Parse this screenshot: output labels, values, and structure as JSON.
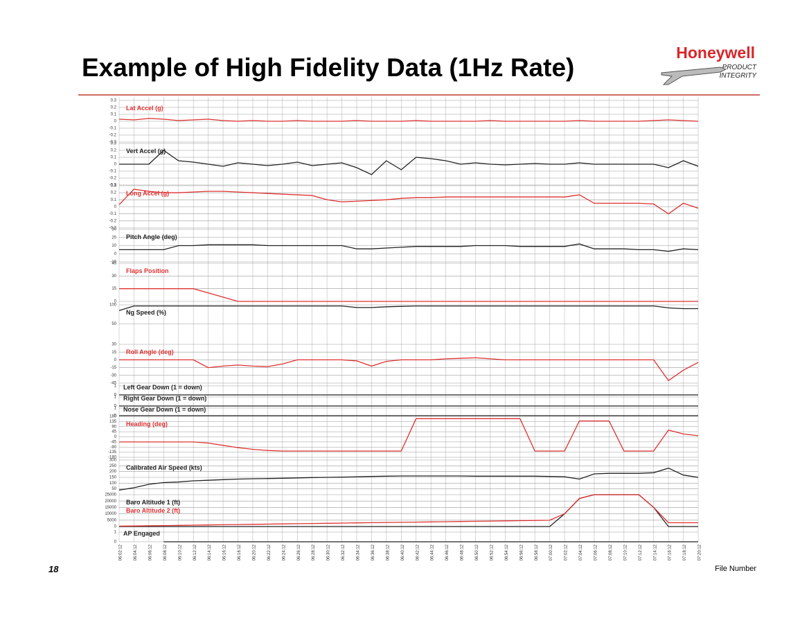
{
  "header": {
    "title": "Example of High Fidelity Data (1Hz Rate)",
    "logo": "Honeywell",
    "logo_line1": "PRODUCT",
    "logo_line2": "INTEGRITY"
  },
  "footer": {
    "page": "18",
    "file": "File Number"
  },
  "chart_data": {
    "type": "line",
    "grid": true,
    "categories": [
      "06:02:12",
      "06:04:12",
      "06:06:12",
      "06:08:12",
      "06:10:12",
      "06:12:12",
      "06:14:12",
      "06:16:12",
      "06:18:12",
      "06:20:12",
      "06:22:12",
      "06:24:12",
      "06:26:12",
      "06:28:12",
      "06:30:12",
      "06:32:12",
      "06:34:12",
      "06:36:12",
      "06:38:12",
      "06:40:12",
      "06:42:12",
      "06:44:12",
      "06:46:12",
      "06:48:12",
      "06:50:12",
      "06:52:12",
      "06:54:12",
      "06:56:12",
      "06:58:12",
      "07:00:12",
      "07:02:12",
      "07:04:12",
      "07:06:12",
      "07:08:12",
      "07:10:12",
      "07:12:12",
      "07:14:12",
      "07:16:12",
      "07:18:12",
      "07:20:12"
    ],
    "panels": [
      {
        "ylim": [
          -0.3,
          0.3
        ],
        "yticks": [
          0.3,
          0.2,
          0.1,
          0,
          -0.1,
          -0.2,
          -0.3
        ],
        "series": [
          {
            "name": "Lat Accel (g)",
            "color": "#e03030",
            "values": [
              0.03,
              0.02,
              0.04,
              0.03,
              0.01,
              0.02,
              0.03,
              0.01,
              0,
              0.01,
              0,
              0,
              0.01,
              0,
              0,
              0,
              0.01,
              0,
              0,
              0,
              0.01,
              0,
              0,
              0,
              0,
              0.01,
              0,
              0,
              0,
              0,
              0,
              0.01,
              0,
              0,
              0,
              0,
              0.01,
              0.02,
              0.01,
              0
            ]
          }
        ]
      },
      {
        "ylim": [
          -0.3,
          0.3
        ],
        "yticks": [
          0.3,
          0.2,
          0.1,
          0,
          -0.1,
          -0.2,
          -0.3
        ],
        "series": [
          {
            "name": "Vert Accel (g)",
            "color": "#222222",
            "values": [
              0,
              0,
              0,
              0.2,
              0.05,
              0.03,
              0,
              -0.03,
              0.02,
              0,
              -0.02,
              0,
              0.03,
              -0.02,
              0,
              0.02,
              -0.05,
              -0.15,
              0.05,
              -0.08,
              0.1,
              0.08,
              0.05,
              0,
              0.02,
              0,
              -0.01,
              0,
              0.01,
              0,
              0,
              0.02,
              0,
              0,
              0,
              0,
              0,
              -0.05,
              0.05,
              -0.03
            ]
          }
        ]
      },
      {
        "ylim": [
          -0.3,
          0.3
        ],
        "yticks": [
          0.3,
          0.2,
          0.1,
          0,
          -0.1,
          -0.2,
          -0.3
        ],
        "series": [
          {
            "name": "Long Accel (g)",
            "color": "#e03030",
            "values": [
              0.03,
              0.25,
              0.22,
              0.2,
              0.2,
              0.21,
              0.22,
              0.22,
              0.21,
              0.2,
              0.19,
              0.18,
              0.17,
              0.16,
              0.1,
              0.07,
              0.08,
              0.09,
              0.1,
              0.12,
              0.13,
              0.13,
              0.14,
              0.14,
              0.14,
              0.14,
              0.14,
              0.14,
              0.14,
              0.14,
              0.14,
              0.17,
              0.05,
              0.05,
              0.05,
              0.05,
              0.04,
              -0.1,
              0.05,
              -0.02
            ]
          }
        ]
      },
      {
        "ylim": [
          -10,
          30
        ],
        "yticks": [
          30,
          20,
          10,
          0,
          -10
        ],
        "series": [
          {
            "name": "Pitch Angle (deg)",
            "color": "#222222",
            "values": [
              5,
              5,
              5,
              5,
              10,
              10,
              11,
              11,
              11,
              11,
              10,
              10,
              10,
              10,
              10,
              10,
              6,
              6,
              7,
              8,
              9,
              9,
              9,
              9,
              10,
              10,
              10,
              9,
              9,
              9,
              9,
              12,
              6,
              6,
              6,
              5,
              5,
              3,
              6,
              5
            ]
          }
        ]
      },
      {
        "ylim": [
          0,
          45
        ],
        "yticks": [
          45,
          30,
          15,
          0
        ],
        "series": [
          {
            "name": "Flaps Position",
            "color": "#e03030",
            "values": [
              15,
              15,
              15,
              15,
              15,
              15,
              10,
              5,
              0,
              0,
              0,
              0,
              0,
              0,
              0,
              0,
              0,
              0,
              0,
              0,
              0,
              0,
              0,
              0,
              0,
              0,
              0,
              0,
              0,
              0,
              0,
              0,
              0,
              0,
              0,
              0,
              0,
              0,
              0,
              0
            ]
          }
        ]
      },
      {
        "ylim": [
          0,
          100
        ],
        "yticks": [
          100,
          50
        ],
        "series": [
          {
            "name": "Ng Speed (%)",
            "color": "#222222",
            "values": [
              85,
              97,
              97,
              97,
              97,
              97,
              97,
              97,
              97,
              97,
              97,
              97,
              97,
              97,
              97,
              97,
              93,
              93,
              95,
              96,
              97,
              97,
              97,
              97,
              97,
              97,
              97,
              97,
              97,
              97,
              97,
              97,
              97,
              97,
              97,
              97,
              97,
              92,
              90,
              90
            ]
          }
        ]
      },
      {
        "ylim": [
          -45,
          30
        ],
        "yticks": [
          30,
          15,
          0,
          -15,
          -30,
          -45
        ],
        "series": [
          {
            "name": "Roll Angle (deg)",
            "color": "#e03030",
            "values": [
              0,
              0,
              0,
              0,
              0,
              0,
              -15,
              -12,
              -10,
              -12,
              -13,
              -8,
              0,
              0,
              0,
              0,
              -2,
              -12,
              -3,
              0,
              0,
              0,
              2,
              3,
              4,
              2,
              0,
              0,
              0,
              0,
              0,
              0,
              0,
              0,
              0,
              0,
              0,
              -40,
              -20,
              -5
            ]
          }
        ]
      },
      {
        "ylim": [
          0,
          1
        ],
        "yticks": [
          1,
          0
        ],
        "series": [
          {
            "name": "Left Gear Down (1 = down)",
            "color": "#222222",
            "values": [
              0,
              0,
              0,
              0,
              0,
              0,
              0,
              0,
              0,
              0,
              0,
              0,
              0,
              0,
              0,
              0,
              0,
              0,
              0,
              0,
              0,
              0,
              0,
              0,
              0,
              0,
              0,
              0,
              0,
              0,
              0,
              0,
              0,
              0,
              0,
              0,
              0,
              0,
              0,
              0
            ]
          }
        ]
      },
      {
        "ylim": [
          0,
          1
        ],
        "yticks": [
          1,
          0
        ],
        "series": [
          {
            "name": "Right Gear Down (1 = down)",
            "color": "#222222",
            "values": [
              0,
              0,
              0,
              0,
              0,
              0,
              0,
              0,
              0,
              0,
              0,
              0,
              0,
              0,
              0,
              0,
              0,
              0,
              0,
              0,
              0,
              0,
              0,
              0,
              0,
              0,
              0,
              0,
              0,
              0,
              0,
              0,
              0,
              0,
              0,
              0,
              0,
              0,
              0,
              0
            ]
          }
        ]
      },
      {
        "ylim": [
          0,
          1
        ],
        "yticks": [
          1,
          0
        ],
        "series": [
          {
            "name": "Nose Gear Down (1 = down)",
            "color": "#222222",
            "values": [
              0,
              0,
              0,
              0,
              0,
              0,
              0,
              0,
              0,
              0,
              0,
              0,
              0,
              0,
              0,
              0,
              0,
              0,
              0,
              0,
              0,
              0,
              0,
              0,
              0,
              0,
              0,
              0,
              0,
              0,
              0,
              0,
              0,
              0,
              0,
              0,
              0,
              0,
              0,
              0
            ]
          }
        ]
      },
      {
        "ylim": [
          -180,
          180
        ],
        "yticks": [
          180,
          135,
          90,
          45,
          0,
          -45,
          -90,
          -135,
          -180
        ],
        "series": [
          {
            "name": "Heading (deg)",
            "color": "#e03030",
            "values": [
              -45,
              -45,
              -45,
              -45,
              -45,
              -45,
              -55,
              -75,
              -95,
              -110,
              -120,
              -125,
              -125,
              -125,
              -125,
              -125,
              -125,
              -125,
              -125,
              -125,
              160,
              160,
              160,
              160,
              160,
              160,
              160,
              160,
              -125,
              -125,
              -125,
              140,
              140,
              140,
              -125,
              -125,
              -125,
              60,
              25,
              10
            ]
          }
        ]
      },
      {
        "ylim": [
          0,
          300
        ],
        "yticks": [
          300,
          250,
          200,
          150,
          100,
          50
        ],
        "series": [
          {
            "name": "Calibrated Air Speed (kts)",
            "color": "#222222",
            "values": [
              40,
              60,
              90,
              105,
              110,
              120,
              125,
              130,
              135,
              138,
              140,
              142,
              145,
              148,
              150,
              152,
              155,
              158,
              160,
              162,
              162,
              162,
              162,
              162,
              160,
              160,
              160,
              160,
              160,
              158,
              155,
              135,
              180,
              185,
              185,
              185,
              190,
              230,
              170,
              150
            ]
          }
        ]
      },
      {
        "ylim": [
          0,
          25000
        ],
        "yticks": [
          25000,
          20000,
          15000,
          10000,
          5000,
          0
        ],
        "series": [
          {
            "name": "Baro Altitude 1 (ft)",
            "color": "#222222",
            "values": [
              0,
              0,
              0,
              0,
              0,
              0,
              0,
              0,
              0,
              0,
              0,
              0,
              0,
              0,
              0,
              0,
              0,
              0,
              0,
              0,
              0,
              0,
              0,
              0,
              0,
              0,
              0,
              0,
              0,
              0,
              10000,
              22000,
              25000,
              25000,
              25000,
              25000,
              15000,
              0,
              0,
              0
            ]
          },
          {
            "name": "Baro Altitude 2 (ft)",
            "color": "#e03030",
            "values": [
              300,
              460,
              620,
              780,
              940,
              1100,
              1260,
              1420,
              1580,
              1740,
              1900,
              2060,
              2220,
              2380,
              2540,
              2700,
              2860,
              3020,
              3180,
              3340,
              3500,
              3660,
              3820,
              3980,
              4140,
              4300,
              4460,
              4620,
              4780,
              4940,
              10000,
              22000,
              25000,
              25000,
              25000,
              25000,
              15000,
              3000,
              3000,
              3000
            ]
          }
        ]
      },
      {
        "ylim": [
          0,
          1
        ],
        "yticks": [
          1,
          0
        ],
        "series": [
          {
            "name": "AP Engaged",
            "color": "#222222",
            "values": [
              null,
              null,
              null,
              0,
              0,
              0,
              0,
              0,
              0,
              0,
              0,
              0,
              0,
              0,
              0,
              0,
              0,
              0,
              0,
              0,
              0,
              0,
              0,
              0,
              0,
              0,
              0,
              0,
              0,
              0,
              0,
              0,
              0,
              0,
              0,
              0,
              0,
              0,
              0,
              0
            ]
          }
        ]
      }
    ]
  }
}
